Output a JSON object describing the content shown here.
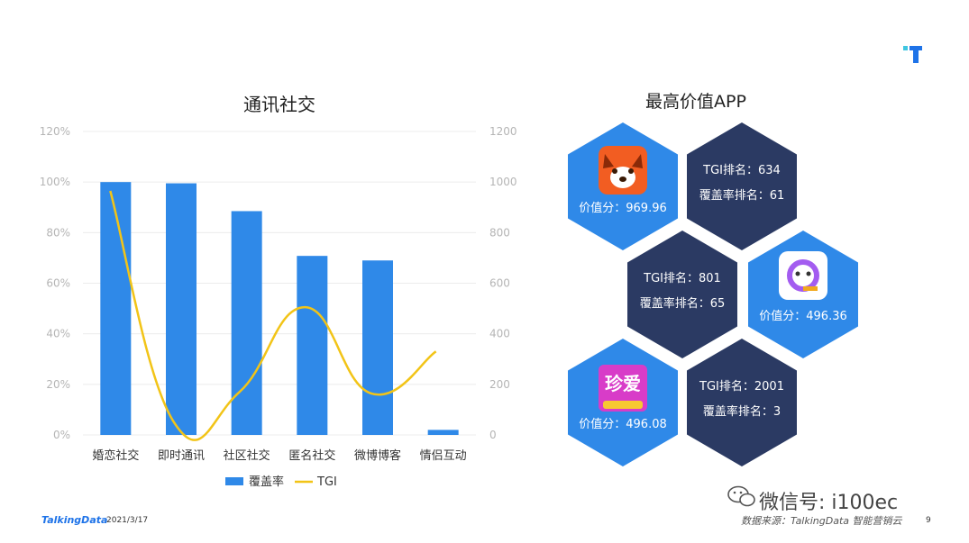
{
  "chart_data": {
    "type": "bar",
    "title": "通讯社交",
    "categories": [
      "婚恋社交",
      "即时通讯",
      "社区社交",
      "匿名社交",
      "微博博客",
      "情侣互动"
    ],
    "series": [
      {
        "name": "覆盖率",
        "type": "bar",
        "axis": "left",
        "color": "#2f89e8",
        "values": [
          100,
          99.5,
          88.5,
          70.8,
          69,
          2
        ]
      },
      {
        "name": "TGI",
        "type": "line",
        "smooth": true,
        "axis": "right",
        "color": "#f2c417",
        "values": [
          965,
          50,
          170,
          505,
          165,
          330
        ]
      }
    ],
    "y_left": {
      "min": 0,
      "max": 120,
      "ticks": [
        "0%",
        "20%",
        "40%",
        "60%",
        "80%",
        "100%",
        "120%"
      ]
    },
    "y_right": {
      "min": 0,
      "max": 1200,
      "ticks": [
        "0",
        "200",
        "400",
        "600",
        "800",
        "1000",
        "1200"
      ]
    },
    "grid": true,
    "legend": "bottom"
  },
  "right_panel": {
    "title": "最高价值APP",
    "apps": [
      {
        "icon": "fox-app-icon",
        "score_label": "价值分：969.96",
        "tgi_rank": "TGI排名：634",
        "coverage_rank": "覆盖率排名：61"
      },
      {
        "icon": "chat-bubble-app-icon",
        "score_label": "价值分：496.36",
        "tgi_rank": "TGI排名：801",
        "coverage_rank": "覆盖率排名：65"
      },
      {
        "icon": "zhenai-app-icon",
        "icon_text": "珍爱",
        "score_label": "价值分：496.08",
        "tgi_rank": "TGI排名：2001",
        "coverage_rank": "覆盖率排名：3"
      }
    ],
    "colors": {
      "blue_hex": "#2f89e8",
      "navy_hex": "#2b3a63"
    }
  },
  "footer": {
    "brand": "TalkingData",
    "date": "2021/3/17",
    "source": "数据来源：TalkingData 智能营销云",
    "page_number": "9",
    "watermark": "微信号: i100ec"
  }
}
